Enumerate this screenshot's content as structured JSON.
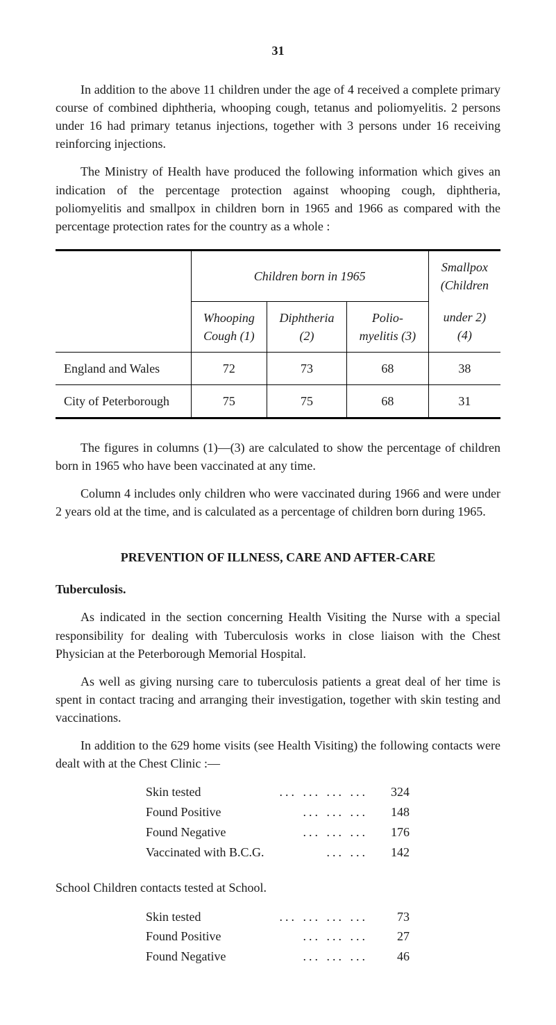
{
  "page_number": "31",
  "paragraphs": {
    "p1": "In addition to the above 11 children under the age of 4 received a complete primary course of combined diphtheria, whooping cough, tetanus and polio­myelitis. 2 persons under 16 had primary tetanus injections, together with 3 persons under 16 receiving reinforcing injections.",
    "p2": "The Ministry of Health have produced the following information which gives an indication of the percentage protection against whooping cough, diphtheria, poliomyelitis and smallpox in children born in 1965 and 1966 as compared with the percentage protection rates for the country as a whole :",
    "p3": "The figures in columns (1)—(3) are calculated to show the percentage of children born in 1965 who have been vaccinated at any time.",
    "p4": "Column 4 includes only children who were vaccinated during 1966 and were under 2 years old at the time, and is calculated as a percentage of children born during 1965."
  },
  "table": {
    "header_span": "Children born in 1965",
    "col_smallpox_line1": "Smallpox",
    "col_smallpox_line2": "(Children",
    "col_smallpox_line3": "under 2)",
    "col_smallpox_line4": "(4)",
    "col1_line1": "Whooping",
    "col1_line2": "Cough (1)",
    "col2_line1": "Diphtheria",
    "col2_line2": "(2)",
    "col3_line1": "Polio-",
    "col3_line2": "myelitis (3)",
    "row1_label": "England and Wales",
    "row1_c1": "72",
    "row1_c2": "73",
    "row1_c3": "68",
    "row1_c4": "38",
    "row2_label": "City of Peterborough",
    "row2_c1": "75",
    "row2_c2": "75",
    "row2_c3": "68",
    "row2_c4": "31"
  },
  "section_heading": "PREVENTION OF ILLNESS, CARE AND AFTER-CARE",
  "tuberculosis": {
    "heading": "Tuberculosis.",
    "p1": "As indicated in the section concerning Health Visiting the Nurse with a special responsibility for dealing with Tuberculosis works in close liaison with the Chest Physician at the Peterborough Memorial Hospital.",
    "p2": "As well as giving nursing care to tuberculosis patients a great deal of her time is spent in contact tracing and arranging their investigation, together with skin testing and vaccinations.",
    "p3": "In addition to the 629 home visits (see Health Visiting) the following contacts were dealt with at the Chest Clinic :—"
  },
  "chest_clinic": {
    "rows": [
      {
        "label": "Skin tested",
        "value": "324"
      },
      {
        "label": "Found Positive",
        "value": "148"
      },
      {
        "label": "Found Negative",
        "value": "176"
      },
      {
        "label": "Vaccinated with B.C.G.",
        "value": "142"
      }
    ]
  },
  "school": {
    "heading": "School Children contacts tested at School.",
    "rows": [
      {
        "label": "Skin tested",
        "value": "73"
      },
      {
        "label": "Found Positive",
        "value": "27"
      },
      {
        "label": "Found Negative",
        "value": "46"
      }
    ]
  }
}
